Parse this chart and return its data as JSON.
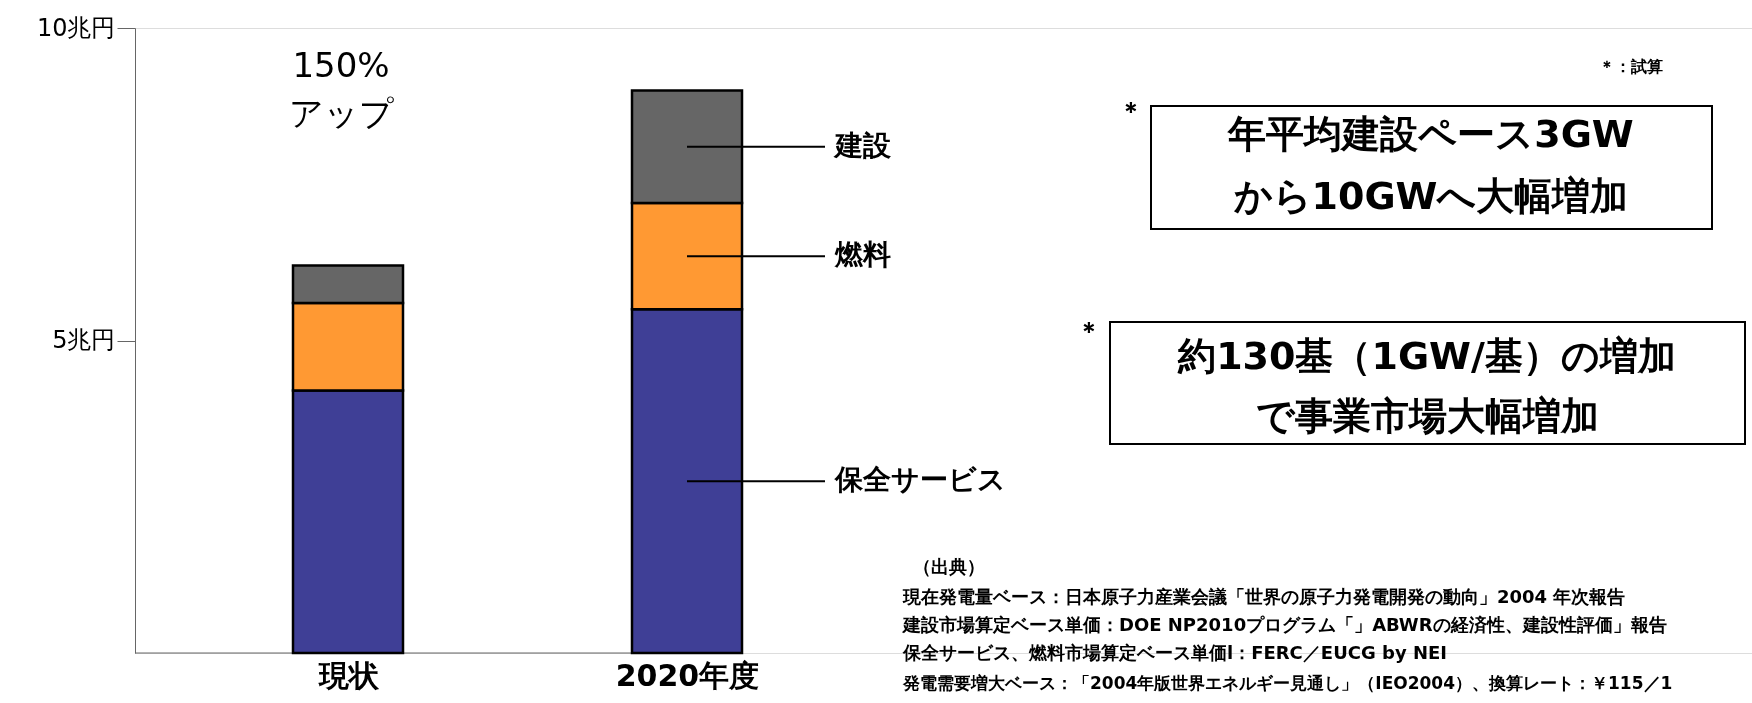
{
  "chart_data": {
    "type": "bar",
    "stacked": true,
    "categories": [
      "現状",
      "2020年度"
    ],
    "series": [
      {
        "name": "保全サービス",
        "color": "#3f3f96",
        "values": [
          4.2,
          5.5
        ]
      },
      {
        "name": "燃料",
        "color": "#ff9933",
        "values": [
          1.4,
          1.7
        ]
      },
      {
        "name": "建設",
        "color": "#666666",
        "values": [
          0.6,
          1.8
        ]
      }
    ],
    "ylim": [
      0,
      10
    ],
    "yticks": [
      {
        "value": 5,
        "label": "5兆円"
      },
      {
        "value": 10,
        "label": "10兆円"
      }
    ],
    "grid": false,
    "legend": "right",
    "annotations": [
      "150%",
      "アップ",
      "＊：試算",
      "＊",
      "年平均建設ペース3GW",
      "から10GWへ大幅増加",
      "＊",
      "約130基（1GW/基）の増加",
      "で事業市場大幅増加",
      "（出典）",
      "現在発電量ベース：日本原子力産業会議「世界の原子力発電開発の動向」2004 年次報告",
      "建設市場算定ベース単価：DOE NP2010プログラム「」ABWRの経済性、建設性評価」報告",
      "保全サービス、燃料市場算定ベース単価l：FERC／EUCG by NEI",
      "発電需要増大ベース：「2004年版世界エネルギー見通し」（IEO2004）、換算レート：￥115／1"
    ]
  }
}
